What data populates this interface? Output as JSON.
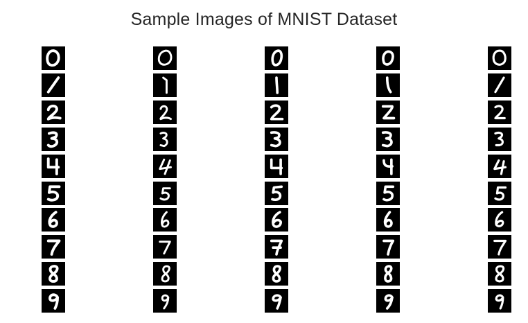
{
  "title": "Sample Images of MNIST Dataset",
  "columns": 5,
  "digits": [
    0,
    1,
    2,
    3,
    4,
    5,
    6,
    7,
    8,
    9
  ],
  "colors": {
    "background": "#ffffff",
    "tile": "#000000",
    "stroke": "#ffffff",
    "title_text": "#262626"
  }
}
